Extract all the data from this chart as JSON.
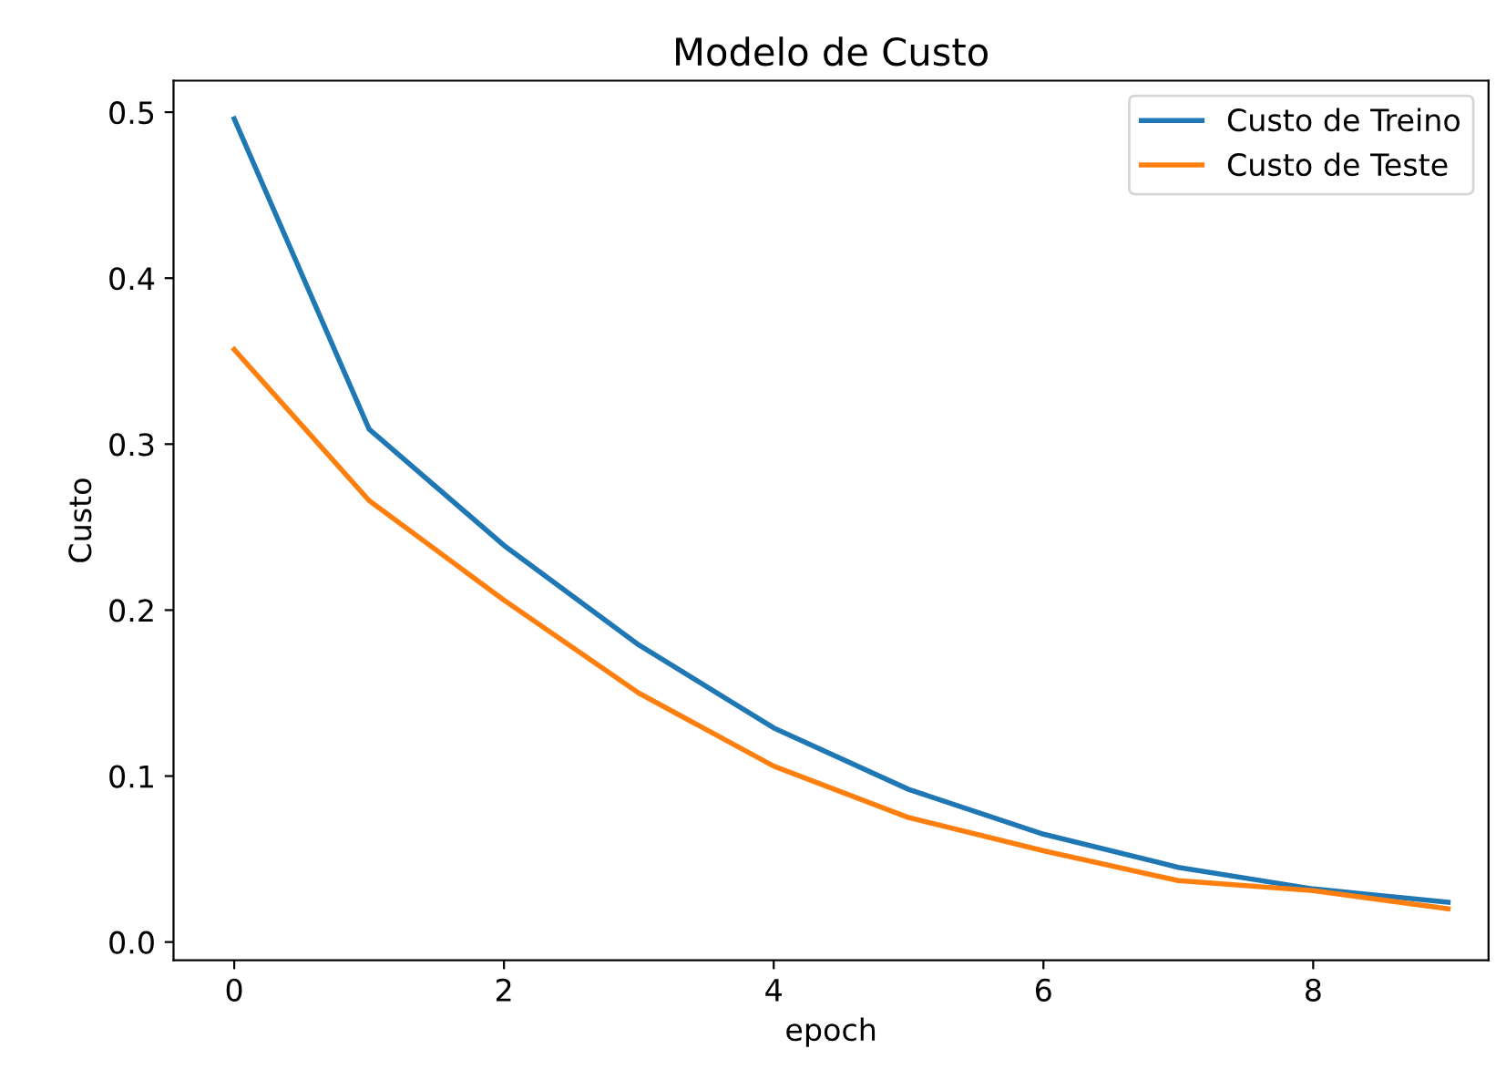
{
  "chart_data": {
    "type": "line",
    "title": "Modelo de Custo",
    "xlabel": "epoch",
    "ylabel": "Custo",
    "x": [
      0,
      1,
      2,
      3,
      4,
      5,
      6,
      7,
      8,
      9
    ],
    "series": [
      {
        "name": "Custo de Treino",
        "color": "#1f77b4",
        "values": [
          0.496,
          0.309,
          0.239,
          0.179,
          0.129,
          0.092,
          0.065,
          0.045,
          0.032,
          0.024
        ]
      },
      {
        "name": "Custo de Teste",
        "color": "#ff7f0e",
        "values": [
          0.357,
          0.266,
          0.206,
          0.15,
          0.106,
          0.075,
          0.055,
          0.037,
          0.031,
          0.02
        ]
      }
    ],
    "xlim": [
      -0.45,
      9.3
    ],
    "xticks": [
      0,
      2,
      4,
      6,
      8
    ],
    "ylim": [
      -0.011,
      0.519
    ],
    "yticks": [
      {
        "value": 0,
        "label": "0.0"
      },
      0.1,
      0.2,
      0.3,
      0.4,
      0.5
    ],
    "legend": "top right",
    "grid": false,
    "marker": "none",
    "line_style": "solid"
  }
}
